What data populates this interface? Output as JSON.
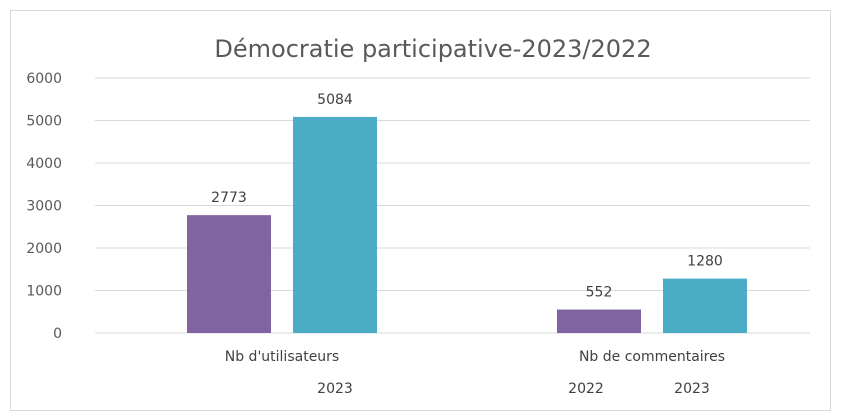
{
  "chart_data": {
    "type": "bar",
    "title": "Démocratie participative-2023/2022",
    "categories": [
      "Nb d'utilisateurs",
      "Nb de commentaires"
    ],
    "series": [
      {
        "color": "#8064a2",
        "values": [
          2773,
          552
        ]
      },
      {
        "color": "#4bacc6",
        "values": [
          5084,
          1280
        ]
      }
    ],
    "point_labels": [
      [
        "",
        "2022"
      ],
      [
        "2023",
        "2023"
      ]
    ],
    "ylim": [
      0,
      6000
    ],
    "yticks": [
      0,
      1000,
      2000,
      3000,
      4000,
      5000,
      6000
    ],
    "grid": true,
    "legend": "none"
  }
}
